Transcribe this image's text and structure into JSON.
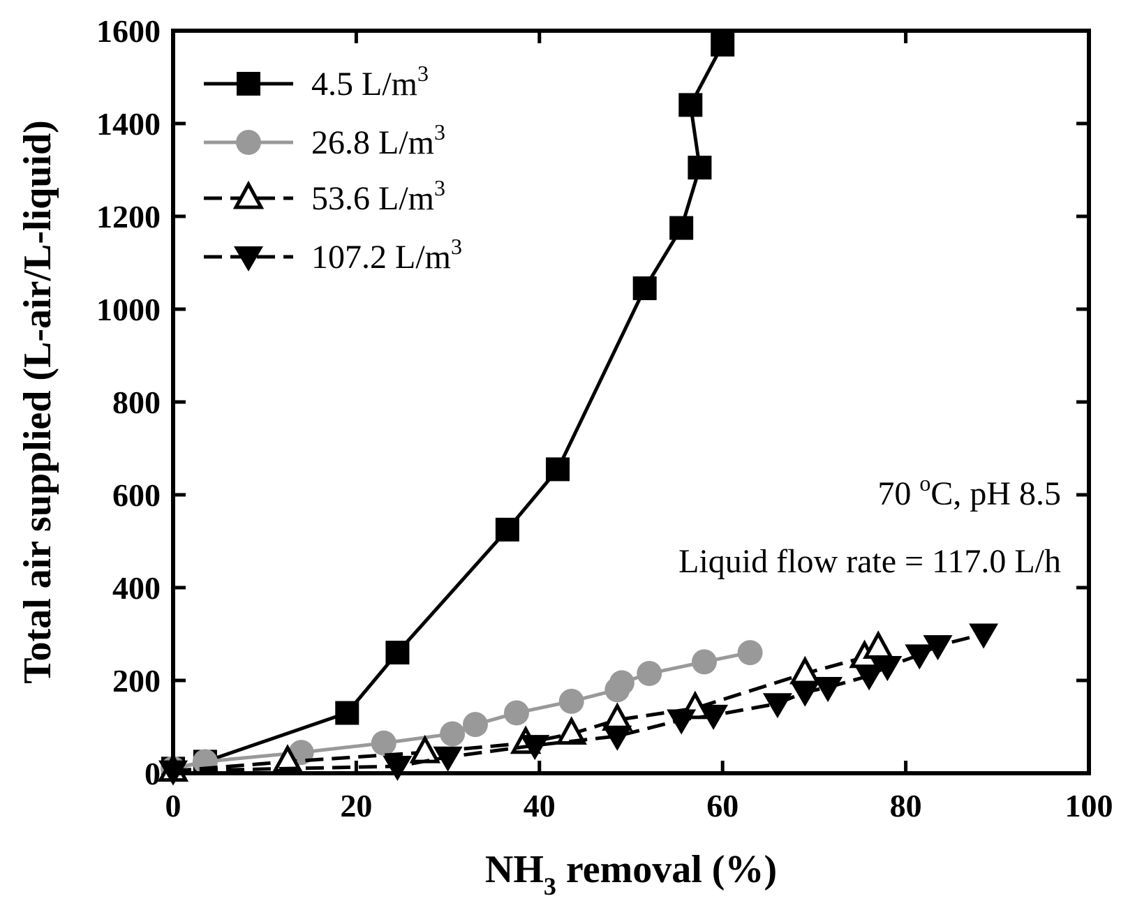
{
  "chart_data": {
    "type": "line",
    "xlabel": {
      "main": "NH",
      "sub": "3",
      "rest": " removal (%)"
    },
    "ylabel": "Total air supplied (L-air/L-liquid)",
    "xlim": [
      0,
      100
    ],
    "ylim": [
      0,
      1600
    ],
    "xticks": [
      "0",
      "20",
      "40",
      "60",
      "80",
      "100"
    ],
    "yticks": [
      "0",
      "200",
      "400",
      "600",
      "800",
      "1000",
      "1200",
      "1400",
      "1600"
    ],
    "annotations": {
      "line1_prefix": "70 ",
      "line1_sup": "o",
      "line1_suffix": "C, pH 8.5",
      "line2": "Liquid flow rate = 117.0 L/h"
    },
    "series": [
      {
        "name": "4.5 L/m",
        "unit_sup": "3",
        "marker": "square",
        "color": "#000000",
        "dash": "none",
        "x": [
          0,
          3.5,
          19,
          24.5,
          36.5,
          42,
          51.5,
          55.5,
          57.5,
          56.5,
          60
        ],
        "y": [
          10,
          25,
          130,
          260,
          525,
          655,
          1045,
          1175,
          1305,
          1440,
          1570
        ]
      },
      {
        "name": "26.8 L/m",
        "unit_sup": "3",
        "marker": "circle",
        "color": "#999999",
        "dash": "none",
        "x": [
          0,
          3.5,
          14,
          23,
          30.5,
          33,
          37.5,
          43.5,
          48.5,
          49,
          52,
          58,
          63
        ],
        "y": [
          10,
          25,
          45,
          65,
          85,
          105,
          130,
          155,
          180,
          195,
          215,
          240,
          260
        ]
      },
      {
        "name": "53.6 L/m",
        "unit_sup": "3",
        "marker": "triangle-up",
        "color": "#000000",
        "dash": "dashed",
        "x": [
          0,
          12.5,
          27.5,
          38.5,
          43.5,
          48.5,
          57,
          69,
          75.5,
          77
        ],
        "y": [
          5,
          25,
          45,
          65,
          85,
          115,
          140,
          215,
          250,
          270
        ]
      },
      {
        "name": "107.2 L/m",
        "unit_sup": "3",
        "marker": "triangle-down",
        "color": "#000000",
        "dash": "dashed",
        "x": [
          0,
          24.5,
          30,
          39.5,
          48.5,
          55.5,
          59,
          66,
          69,
          71.5,
          76,
          78,
          81.5,
          83.5,
          88.5
        ],
        "y": [
          5,
          15,
          35,
          60,
          80,
          115,
          125,
          150,
          175,
          185,
          210,
          230,
          255,
          275,
          300
        ]
      }
    ]
  }
}
